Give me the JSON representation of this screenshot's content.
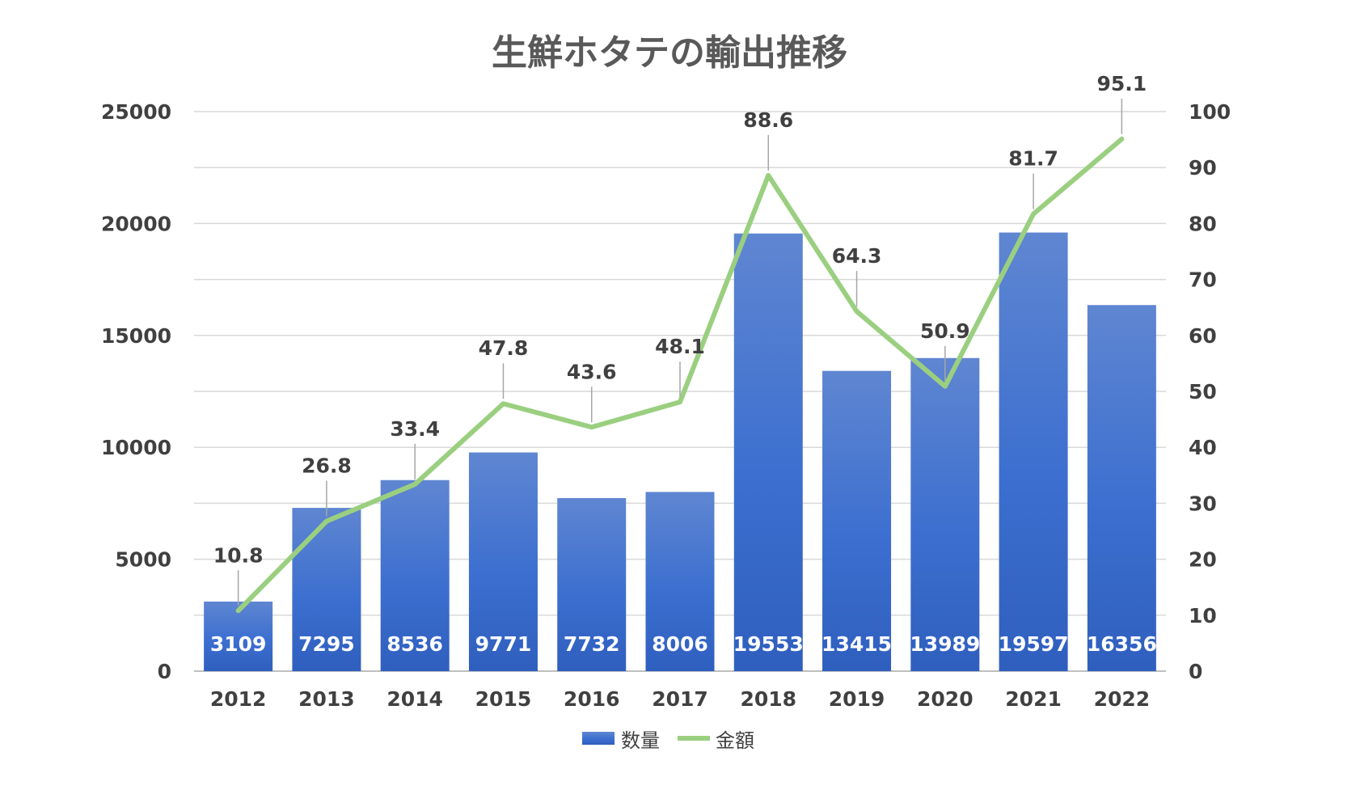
{
  "chart_data": {
    "type": "bar",
    "title": "生鮮ホタテの輸出推移",
    "categories": [
      "2012",
      "2013",
      "2014",
      "2015",
      "2016",
      "2017",
      "2018",
      "2019",
      "2020",
      "2021",
      "2022"
    ],
    "series": [
      {
        "name": "数量",
        "type": "bar",
        "axis": "left",
        "values": [
          3109,
          7295,
          8536,
          9771,
          7732,
          8006,
          19553,
          13415,
          13989,
          19597,
          16356
        ],
        "color": "#3a6bc9"
      },
      {
        "name": "金額",
        "type": "line",
        "axis": "right",
        "values": [
          10.8,
          26.8,
          33.4,
          47.8,
          43.6,
          48.1,
          88.6,
          64.3,
          50.9,
          81.7,
          95.1
        ],
        "color": "#9bcf80"
      }
    ],
    "y_left": {
      "min": 0,
      "max": 25000,
      "ticks": [
        "0",
        "5000",
        "10000",
        "15000",
        "20000",
        "25000"
      ]
    },
    "y_right": {
      "min": 0,
      "max": 100,
      "ticks": [
        "0",
        "10",
        "20",
        "30",
        "40",
        "50",
        "60",
        "70",
        "80",
        "90",
        "100"
      ]
    },
    "grid": true,
    "legend": "bottom"
  }
}
